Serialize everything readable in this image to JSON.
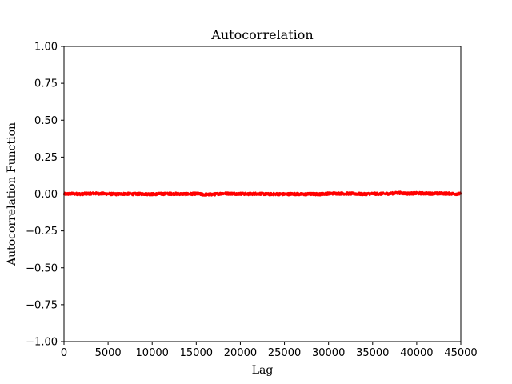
{
  "chart_data": {
    "type": "line",
    "title": "Autocorrelation",
    "xlabel": "Lag",
    "ylabel": "Autocorrelation Function",
    "xlim": [
      0,
      45000
    ],
    "ylim": [
      -1.0,
      1.0
    ],
    "xticks": [
      0,
      5000,
      10000,
      15000,
      20000,
      25000,
      30000,
      35000,
      40000,
      45000
    ],
    "xtick_labels": [
      "0",
      "5000",
      "10000",
      "15000",
      "20000",
      "25000",
      "30000",
      "35000",
      "40000",
      "45000"
    ],
    "yticks": [
      1.0,
      0.75,
      0.5,
      0.25,
      0.0,
      -0.25,
      -0.5,
      -0.75,
      -1.0
    ],
    "ytick_labels": [
      "1.00",
      "0.75",
      "0.50",
      "0.25",
      "0.00",
      "−0.25",
      "−0.50",
      "−0.75",
      "−1.00"
    ],
    "grid": false,
    "series": [
      {
        "color": "#ff0000",
        "x": [
          0,
          1000,
          2000,
          3000,
          4000,
          5000,
          6000,
          7000,
          8000,
          9000,
          10000,
          11000,
          12000,
          13000,
          14000,
          15000,
          16000,
          17000,
          18000,
          19000,
          20000,
          21000,
          22000,
          23000,
          24000,
          25000,
          26000,
          27000,
          28000,
          29000,
          30000,
          31000,
          32000,
          33000,
          34000,
          35000,
          36000,
          37000,
          38000,
          39000,
          40000,
          41000,
          42000,
          43000,
          44000,
          45000
        ],
        "values": [
          0.0,
          0.002,
          0.0,
          0.004,
          0.003,
          0.001,
          -0.001,
          0.002,
          0.0,
          0.001,
          -0.001,
          0.001,
          0.002,
          0.001,
          0.0,
          0.002,
          -0.004,
          -0.002,
          0.004,
          0.003,
          0.002,
          0.0,
          0.003,
          -0.001,
          0.0,
          -0.001,
          0.001,
          -0.002,
          0.0,
          -0.001,
          0.003,
          0.004,
          0.003,
          0.002,
          -0.001,
          0.002,
          0.001,
          0.003,
          0.008,
          0.003,
          0.005,
          0.004,
          0.003,
          0.004,
          0.002,
          0.001
        ]
      }
    ]
  }
}
